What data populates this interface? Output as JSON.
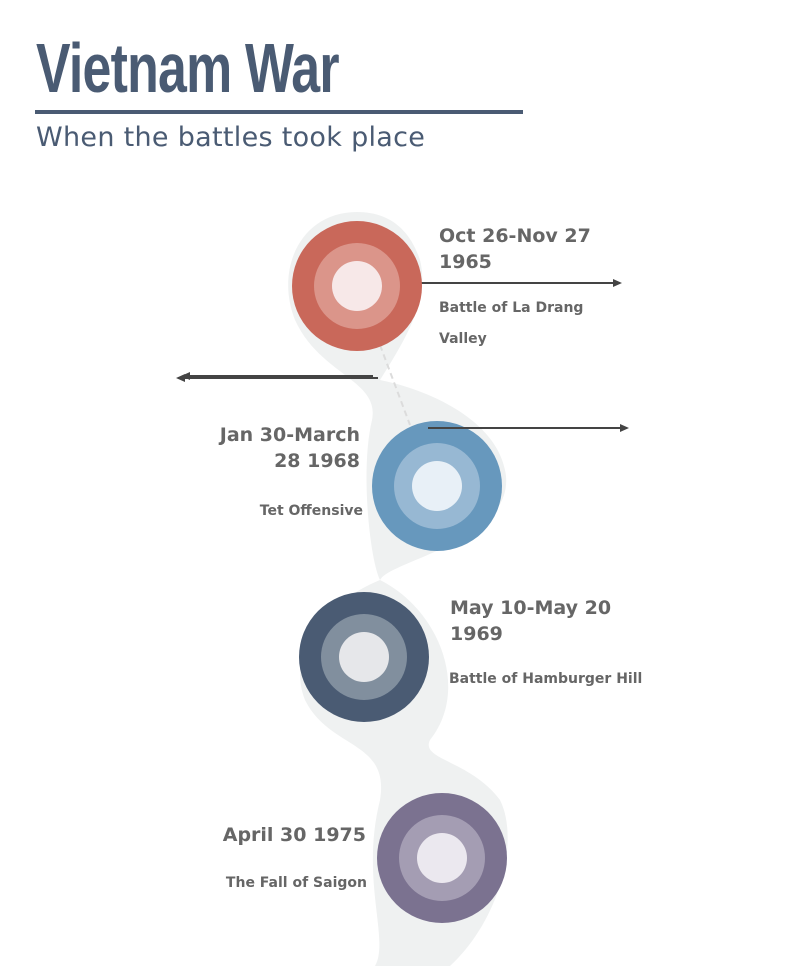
{
  "header": {
    "title": "Vietnam War",
    "subtitle": "When the battles took place"
  },
  "events": [
    {
      "date_line1": "Oct 26-Nov 27",
      "date_line2": "1965",
      "name_line1": "Battle of La Drang",
      "name_line2": "Valley",
      "colors": [
        "#c9685a",
        "#db958a",
        "#f7e8e8"
      ],
      "side": "right"
    },
    {
      "date_line1": "Jan 30-March",
      "date_line2": "28 1968",
      "name_line1": "Tet Offensive",
      "colors": [
        "#6798bd",
        "#97b8d3",
        "#e8f0f7"
      ],
      "side": "left"
    },
    {
      "date_line1": "May 10-May 20",
      "date_line2": "1969",
      "name_line1": "Battle of Hamburger Hill",
      "colors": [
        "#4a5b73",
        "#818f9e",
        "#e6e7ea"
      ],
      "side": "right"
    },
    {
      "date_line1": "April 30 1975",
      "name_line1": "The Fall of Saigon",
      "colors": [
        "#7b7290",
        "#a49db3",
        "#ebe8ef"
      ],
      "side": "left"
    }
  ]
}
